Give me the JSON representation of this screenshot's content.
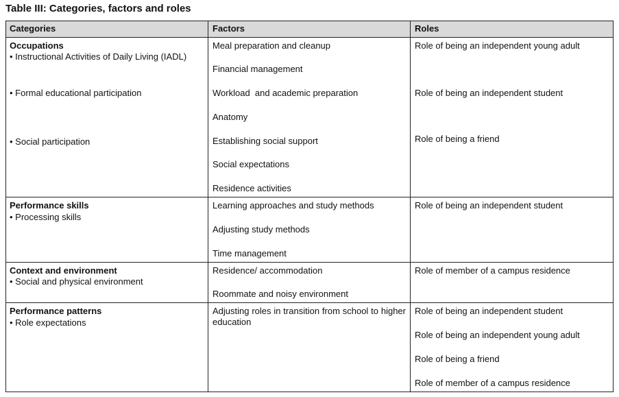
{
  "title": "Table III: Categories, factors and roles",
  "headers": [
    "Categories",
    "Factors",
    "Roles"
  ],
  "rows": [
    {
      "category": "Occupations",
      "subcategories": [
        "• Instructional Activities of Daily Living (IADL)",
        "• Formal educational participation",
        "• Social participation"
      ],
      "factors": [
        "Meal preparation and cleanup",
        "Financial management",
        "Workload  and academic preparation",
        "Anatomy",
        "Establishing social support",
        "Social expectations",
        "Residence activities"
      ],
      "roles": [
        "Role of being an independent young adult",
        "Role of being an independent student",
        "Role of being a friend"
      ]
    },
    {
      "category": "Performance skills",
      "subcategories": [
        "• Processing skills"
      ],
      "factors": [
        "Learning approaches and study methods",
        "Adjusting study methods",
        "Time management"
      ],
      "roles": [
        "Role of being an independent student"
      ]
    },
    {
      "category": "Context and environment",
      "subcategories": [
        "• Social and physical environment"
      ],
      "factors": [
        "Residence/ accommodation",
        "Roommate and noisy environment"
      ],
      "roles": [
        "Role of member of a campus residence"
      ]
    },
    {
      "category": "Performance patterns",
      "subcategories": [
        "• Role expectations"
      ],
      "factors": [
        "Adjusting roles in transition from school to higher education"
      ],
      "roles": [
        "Role of being an independent student",
        "Role of being an independent young adult",
        "Role of being a friend",
        "Role of member of a campus residence"
      ]
    }
  ]
}
